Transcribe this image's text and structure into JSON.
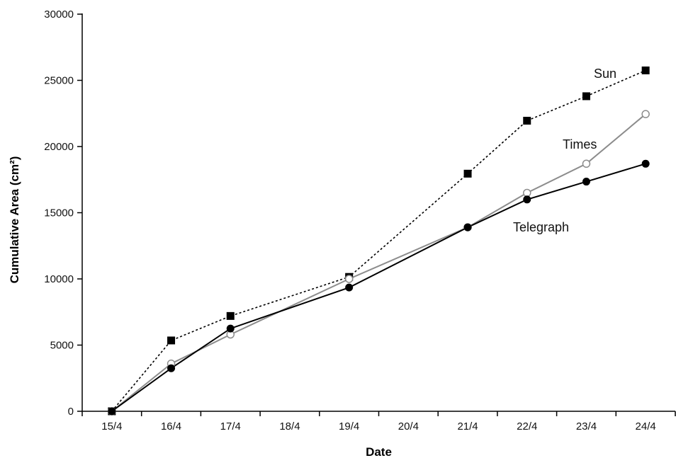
{
  "chart_data": {
    "type": "line",
    "title": "",
    "xlabel": "Date",
    "ylabel": "Cumulative Area (cm²)",
    "categories": [
      "15/4",
      "16/4",
      "17/4",
      "18/4",
      "19/4",
      "20/4",
      "21/4",
      "22/4",
      "23/4",
      "24/4"
    ],
    "ylim": [
      0,
      30000
    ],
    "yticks": [
      0,
      5000,
      10000,
      15000,
      20000,
      25000,
      30000
    ],
    "grid": false,
    "legend": "none (series labelled directly on the plot)",
    "series": [
      {
        "name": "Sun",
        "marker": "filled-square",
        "line_style": "dotted",
        "color": "#000000",
        "x": [
          "15/4",
          "16/4",
          "17/4",
          "19/4",
          "21/4",
          "22/4",
          "23/4",
          "24/4"
        ],
        "values": [
          0,
          5350,
          7200,
          10150,
          17950,
          21950,
          23800,
          25750
        ]
      },
      {
        "name": "Times",
        "marker": "open-circle",
        "line_style": "solid",
        "color": "#8c8c8c",
        "x": [
          "15/4",
          "16/4",
          "17/4",
          "19/4",
          "21/4",
          "22/4",
          "23/4",
          "24/4"
        ],
        "values": [
          0,
          3600,
          5800,
          10000,
          13900,
          16500,
          18700,
          22450
        ]
      },
      {
        "name": "Telegraph",
        "marker": "filled-circle",
        "line_style": "solid",
        "color": "#000000",
        "x": [
          "15/4",
          "16/4",
          "17/4",
          "19/4",
          "21/4",
          "22/4",
          "23/4",
          "24/4"
        ],
        "values": [
          0,
          3250,
          6250,
          9350,
          13900,
          16000,
          17350,
          18700
        ]
      }
    ]
  }
}
